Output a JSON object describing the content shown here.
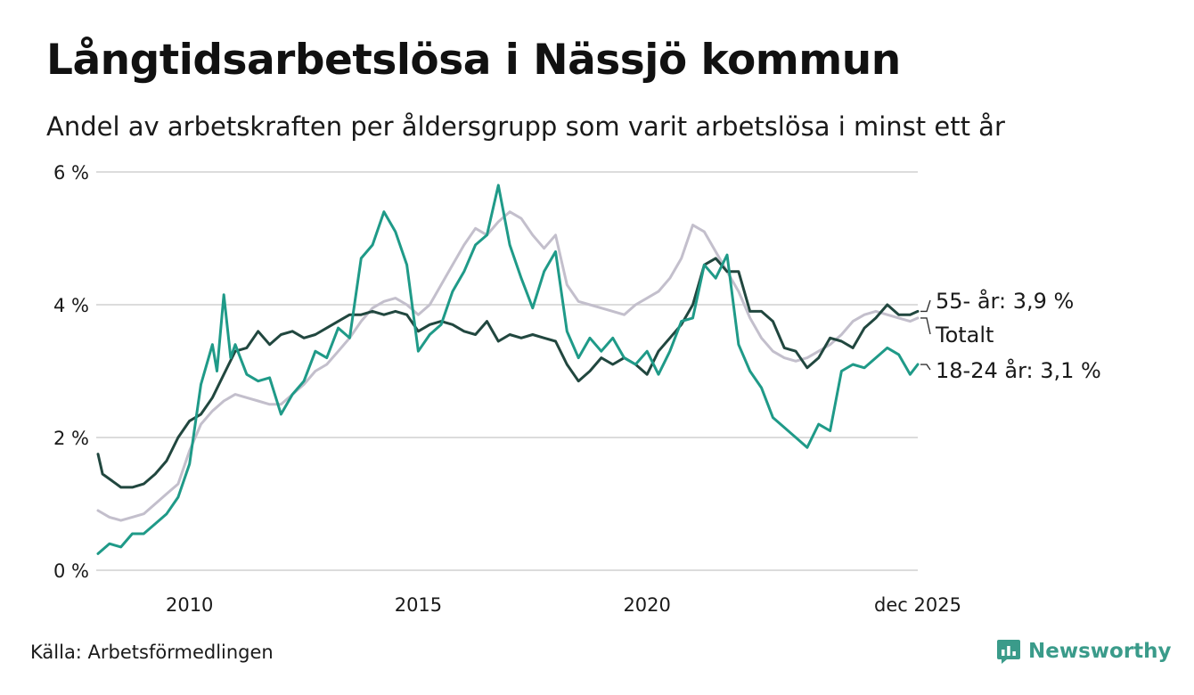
{
  "title": "Långtidsarbetslösa i Nässjö kommun",
  "subtitle": "Andel av arbetskraften per åldersgrupp som varit arbetslösa i minst ett år",
  "source": "Källa: Arbetsförmedlingen",
  "brand": "Newsworthy",
  "colors": {
    "grid": "#dcdcdc",
    "total": "#c3bfcc",
    "age55": "#21473f",
    "age1824": "#1f9a88",
    "brand": "#3a9b8a"
  },
  "chart_data": {
    "type": "line",
    "title": "Långtidsarbetslösa i Nässjö kommun",
    "subtitle": "Andel av arbetskraften per åldersgrupp som varit arbetslösa i minst ett år",
    "xlim": [
      2008.0,
      2025.917
    ],
    "ylim": [
      0,
      6
    ],
    "yticks": [
      {
        "value": 0,
        "label": "0 %"
      },
      {
        "value": 2,
        "label": "2 %"
      },
      {
        "value": 4,
        "label": "4 %"
      },
      {
        "value": 6,
        "label": "6 %"
      }
    ],
    "xticks": [
      {
        "value": 2010,
        "label": "2010"
      },
      {
        "value": 2015,
        "label": "2015"
      },
      {
        "value": 2020,
        "label": "2020"
      },
      {
        "value": 2025.917,
        "label": "dec 2025"
      }
    ],
    "grid": true,
    "legend": "end-labels at right",
    "series": [
      {
        "name": "Totalt",
        "label": "Totalt",
        "key": "total",
        "points": [
          [
            2008.0,
            0.9
          ],
          [
            2008.25,
            0.8
          ],
          [
            2008.5,
            0.75
          ],
          [
            2008.75,
            0.8
          ],
          [
            2009.0,
            0.85
          ],
          [
            2009.25,
            1.0
          ],
          [
            2009.5,
            1.15
          ],
          [
            2009.75,
            1.3
          ],
          [
            2010.0,
            1.8
          ],
          [
            2010.25,
            2.2
          ],
          [
            2010.5,
            2.4
          ],
          [
            2010.75,
            2.55
          ],
          [
            2011.0,
            2.65
          ],
          [
            2011.25,
            2.6
          ],
          [
            2011.5,
            2.55
          ],
          [
            2011.75,
            2.5
          ],
          [
            2012.0,
            2.5
          ],
          [
            2012.25,
            2.65
          ],
          [
            2012.5,
            2.8
          ],
          [
            2012.75,
            3.0
          ],
          [
            2013.0,
            3.1
          ],
          [
            2013.25,
            3.3
          ],
          [
            2013.5,
            3.5
          ],
          [
            2013.75,
            3.75
          ],
          [
            2014.0,
            3.95
          ],
          [
            2014.25,
            4.05
          ],
          [
            2014.5,
            4.1
          ],
          [
            2014.75,
            4.0
          ],
          [
            2015.0,
            3.85
          ],
          [
            2015.25,
            4.0
          ],
          [
            2015.5,
            4.3
          ],
          [
            2015.75,
            4.6
          ],
          [
            2016.0,
            4.9
          ],
          [
            2016.25,
            5.15
          ],
          [
            2016.5,
            5.05
          ],
          [
            2016.75,
            5.25
          ],
          [
            2017.0,
            5.4
          ],
          [
            2017.25,
            5.3
          ],
          [
            2017.5,
            5.05
          ],
          [
            2017.75,
            4.85
          ],
          [
            2018.0,
            5.05
          ],
          [
            2018.25,
            4.3
          ],
          [
            2018.5,
            4.05
          ],
          [
            2018.75,
            4.0
          ],
          [
            2019.0,
            3.95
          ],
          [
            2019.25,
            3.9
          ],
          [
            2019.5,
            3.85
          ],
          [
            2019.75,
            4.0
          ],
          [
            2020.0,
            4.1
          ],
          [
            2020.25,
            4.2
          ],
          [
            2020.5,
            4.4
          ],
          [
            2020.75,
            4.7
          ],
          [
            2021.0,
            5.2
          ],
          [
            2021.25,
            5.1
          ],
          [
            2021.5,
            4.8
          ],
          [
            2021.75,
            4.5
          ],
          [
            2022.0,
            4.2
          ],
          [
            2022.25,
            3.8
          ],
          [
            2022.5,
            3.5
          ],
          [
            2022.75,
            3.3
          ],
          [
            2023.0,
            3.2
          ],
          [
            2023.25,
            3.15
          ],
          [
            2023.5,
            3.2
          ],
          [
            2023.75,
            3.3
          ],
          [
            2024.0,
            3.4
          ],
          [
            2024.25,
            3.55
          ],
          [
            2024.5,
            3.75
          ],
          [
            2024.75,
            3.85
          ],
          [
            2025.0,
            3.9
          ],
          [
            2025.25,
            3.85
          ],
          [
            2025.5,
            3.8
          ],
          [
            2025.75,
            3.75
          ],
          [
            2025.917,
            3.8
          ]
        ],
        "end_value": null
      },
      {
        "name": "55- år",
        "label": "55- år: 3,9 %",
        "key": "age55",
        "points": [
          [
            2008.0,
            1.75
          ],
          [
            2008.1,
            1.45
          ],
          [
            2008.3,
            1.35
          ],
          [
            2008.5,
            1.25
          ],
          [
            2008.75,
            1.25
          ],
          [
            2009.0,
            1.3
          ],
          [
            2009.25,
            1.45
          ],
          [
            2009.5,
            1.65
          ],
          [
            2009.75,
            2.0
          ],
          [
            2010.0,
            2.25
          ],
          [
            2010.25,
            2.35
          ],
          [
            2010.5,
            2.6
          ],
          [
            2010.75,
            2.95
          ],
          [
            2011.0,
            3.3
          ],
          [
            2011.25,
            3.35
          ],
          [
            2011.5,
            3.6
          ],
          [
            2011.75,
            3.4
          ],
          [
            2012.0,
            3.55
          ],
          [
            2012.25,
            3.6
          ],
          [
            2012.5,
            3.5
          ],
          [
            2012.75,
            3.55
          ],
          [
            2013.0,
            3.65
          ],
          [
            2013.25,
            3.75
          ],
          [
            2013.5,
            3.85
          ],
          [
            2013.75,
            3.85
          ],
          [
            2014.0,
            3.9
          ],
          [
            2014.25,
            3.85
          ],
          [
            2014.5,
            3.9
          ],
          [
            2014.75,
            3.85
          ],
          [
            2015.0,
            3.6
          ],
          [
            2015.25,
            3.7
          ],
          [
            2015.5,
            3.75
          ],
          [
            2015.75,
            3.7
          ],
          [
            2016.0,
            3.6
          ],
          [
            2016.25,
            3.55
          ],
          [
            2016.5,
            3.75
          ],
          [
            2016.75,
            3.45
          ],
          [
            2017.0,
            3.55
          ],
          [
            2017.25,
            3.5
          ],
          [
            2017.5,
            3.55
          ],
          [
            2017.75,
            3.5
          ],
          [
            2018.0,
            3.45
          ],
          [
            2018.25,
            3.1
          ],
          [
            2018.5,
            2.85
          ],
          [
            2018.75,
            3.0
          ],
          [
            2019.0,
            3.2
          ],
          [
            2019.25,
            3.1
          ],
          [
            2019.5,
            3.2
          ],
          [
            2019.75,
            3.1
          ],
          [
            2020.0,
            2.95
          ],
          [
            2020.25,
            3.3
          ],
          [
            2020.5,
            3.5
          ],
          [
            2020.75,
            3.7
          ],
          [
            2021.0,
            4.0
          ],
          [
            2021.25,
            4.6
          ],
          [
            2021.5,
            4.7
          ],
          [
            2021.75,
            4.5
          ],
          [
            2022.0,
            4.5
          ],
          [
            2022.25,
            3.9
          ],
          [
            2022.5,
            3.9
          ],
          [
            2022.75,
            3.75
          ],
          [
            2023.0,
            3.35
          ],
          [
            2023.25,
            3.3
          ],
          [
            2023.5,
            3.05
          ],
          [
            2023.75,
            3.2
          ],
          [
            2024.0,
            3.5
          ],
          [
            2024.25,
            3.45
          ],
          [
            2024.5,
            3.35
          ],
          [
            2024.75,
            3.65
          ],
          [
            2025.0,
            3.8
          ],
          [
            2025.25,
            4.0
          ],
          [
            2025.5,
            3.85
          ],
          [
            2025.75,
            3.85
          ],
          [
            2025.917,
            3.9
          ]
        ],
        "end_value": 3.9
      },
      {
        "name": "18-24 år",
        "label": "18-24 år: 3,1 %",
        "key": "age1824",
        "points": [
          [
            2008.0,
            0.25
          ],
          [
            2008.25,
            0.4
          ],
          [
            2008.5,
            0.35
          ],
          [
            2008.75,
            0.55
          ],
          [
            2009.0,
            0.55
          ],
          [
            2009.25,
            0.7
          ],
          [
            2009.5,
            0.85
          ],
          [
            2009.75,
            1.1
          ],
          [
            2010.0,
            1.6
          ],
          [
            2010.25,
            2.8
          ],
          [
            2010.5,
            3.4
          ],
          [
            2010.6,
            3.0
          ],
          [
            2010.75,
            4.15
          ],
          [
            2010.9,
            3.2
          ],
          [
            2011.0,
            3.4
          ],
          [
            2011.25,
            2.95
          ],
          [
            2011.5,
            2.85
          ],
          [
            2011.75,
            2.9
          ],
          [
            2012.0,
            2.35
          ],
          [
            2012.25,
            2.65
          ],
          [
            2012.5,
            2.85
          ],
          [
            2012.75,
            3.3
          ],
          [
            2013.0,
            3.2
          ],
          [
            2013.25,
            3.65
          ],
          [
            2013.5,
            3.5
          ],
          [
            2013.75,
            4.7
          ],
          [
            2014.0,
            4.9
          ],
          [
            2014.25,
            5.4
          ],
          [
            2014.5,
            5.1
          ],
          [
            2014.75,
            4.6
          ],
          [
            2015.0,
            3.3
          ],
          [
            2015.25,
            3.55
          ],
          [
            2015.5,
            3.7
          ],
          [
            2015.75,
            4.2
          ],
          [
            2016.0,
            4.5
          ],
          [
            2016.25,
            4.9
          ],
          [
            2016.5,
            5.05
          ],
          [
            2016.75,
            5.8
          ],
          [
            2017.0,
            4.9
          ],
          [
            2017.25,
            4.4
          ],
          [
            2017.5,
            3.95
          ],
          [
            2017.75,
            4.5
          ],
          [
            2018.0,
            4.8
          ],
          [
            2018.25,
            3.6
          ],
          [
            2018.5,
            3.2
          ],
          [
            2018.75,
            3.5
          ],
          [
            2019.0,
            3.3
          ],
          [
            2019.25,
            3.5
          ],
          [
            2019.5,
            3.2
          ],
          [
            2019.75,
            3.1
          ],
          [
            2020.0,
            3.3
          ],
          [
            2020.25,
            2.95
          ],
          [
            2020.5,
            3.3
          ],
          [
            2020.75,
            3.75
          ],
          [
            2021.0,
            3.8
          ],
          [
            2021.25,
            4.6
          ],
          [
            2021.5,
            4.4
          ],
          [
            2021.75,
            4.75
          ],
          [
            2022.0,
            3.4
          ],
          [
            2022.25,
            3.0
          ],
          [
            2022.5,
            2.75
          ],
          [
            2022.75,
            2.3
          ],
          [
            2023.0,
            2.15
          ],
          [
            2023.25,
            2.0
          ],
          [
            2023.5,
            1.85
          ],
          [
            2023.75,
            2.2
          ],
          [
            2024.0,
            2.1
          ],
          [
            2024.25,
            3.0
          ],
          [
            2024.5,
            3.1
          ],
          [
            2024.75,
            3.05
          ],
          [
            2025.0,
            3.2
          ],
          [
            2025.25,
            3.35
          ],
          [
            2025.5,
            3.25
          ],
          [
            2025.75,
            2.95
          ],
          [
            2025.917,
            3.1
          ]
        ],
        "end_value": 3.1
      }
    ]
  }
}
